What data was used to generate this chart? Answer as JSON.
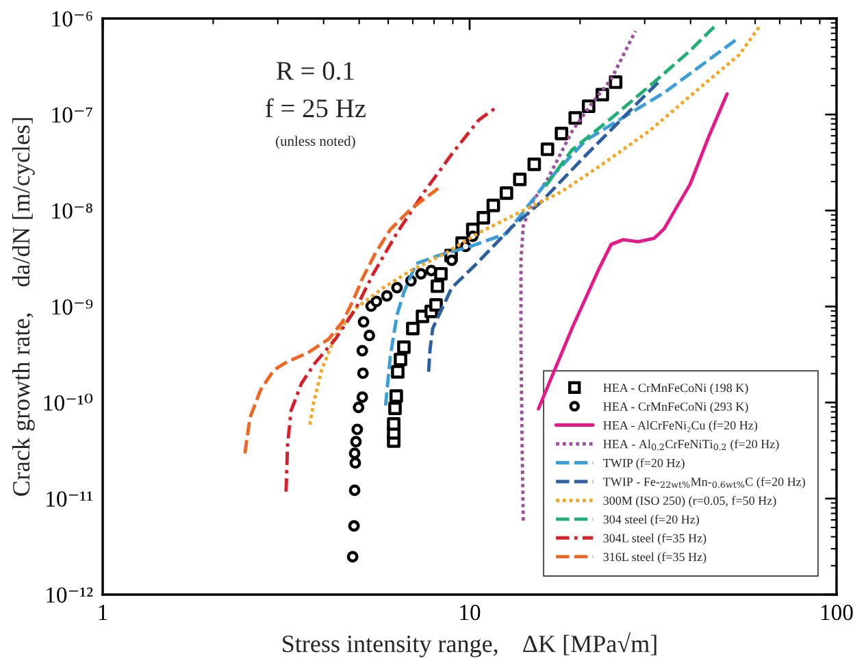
{
  "chart_data": {
    "type": "line",
    "xlabel": "Stress intensity range,    ΔK [MPa√m]",
    "ylabel": "Crack growth rate,    da/dN [m/cycles]",
    "log": "xy",
    "xlim": [
      1,
      100
    ],
    "xticks": [
      1,
      10,
      100
    ],
    "ylim": [
      1e-12,
      1e-06
    ],
    "yticks": [
      {
        "value": 1e-12,
        "label": "10⁻¹²"
      },
      {
        "value": 1e-11,
        "label": "10⁻¹¹"
      },
      {
        "value": 1e-10,
        "label": "10⁻¹⁰"
      },
      {
        "value": 1e-09,
        "label": "10⁻⁹"
      },
      {
        "value": 1e-08,
        "label": "10⁻⁸"
      },
      {
        "value": 1e-07,
        "label": "10⁻⁷"
      },
      {
        "value": 1e-06,
        "label": "10⁻⁶"
      }
    ],
    "grid": false,
    "legend": "bottom right",
    "annotations": [
      "R = 0.1",
      "f = 25 Hz",
      "(unless noted)"
    ],
    "series": [
      {
        "name": "HEA - CrMnFeCoNi (198 K)",
        "type": "scatter",
        "marker": "square",
        "color": "#000000",
        "x": [
          6.21,
          6.21,
          6.21,
          6.26,
          6.31,
          6.37,
          6.48,
          6.62,
          7.0,
          7.44,
          7.86,
          8.1,
          8.17,
          8.35,
          8.9,
          9.54,
          10.2,
          10.9,
          11.6,
          12.6,
          13.7,
          15.0,
          16.3,
          17.8,
          19.4,
          21.1,
          23.0,
          25.0
        ],
        "values": [
          3.97e-11,
          4.84e-11,
          5.98e-11,
          8.7e-11,
          1.17e-10,
          2.09e-10,
          2.81e-10,
          3.77e-10,
          5.9e-10,
          7.9e-10,
          8.9e-10,
          1.04e-09,
          1.63e-09,
          2.19e-09,
          3.4e-09,
          4.57e-09,
          6.35e-09,
          8.4e-09,
          1.13e-08,
          1.52e-08,
          2.11e-08,
          3.03e-08,
          4.34e-08,
          6.34e-08,
          9.2e-08,
          1.22e-07,
          1.61e-07,
          2.17e-07
        ]
      },
      {
        "name": "HEA - CrMnFeCoNi (293 K)",
        "type": "scatter",
        "marker": "circle",
        "color": "#000000",
        "x": [
          4.8,
          4.84,
          4.86,
          4.88,
          4.86,
          4.9,
          4.94,
          4.98,
          5.1,
          5.12,
          5.1,
          5.33,
          5.14,
          5.39,
          5.57,
          5.95,
          6.34,
          6.92,
          7.37,
          7.86,
          8.94,
          9.75,
          10.2
        ],
        "values": [
          2.48e-12,
          5.19e-12,
          1.22e-11,
          2.35e-11,
          2.96e-11,
          3.91e-11,
          5.25e-11,
          8.9e-11,
          1.14e-10,
          2.02e-10,
          3.47e-10,
          4.99e-10,
          6.92e-10,
          1.01e-09,
          1.13e-09,
          1.29e-09,
          1.57e-09,
          1.85e-09,
          2.19e-09,
          2.37e-09,
          3.03e-09,
          4.22e-09,
          5.39e-09
        ]
      },
      {
        "name": "HEA - AlCrFeNi₂Cu (f=20 Hz)",
        "line_style": "solid",
        "color": "#e5198a",
        "x": [
          15.4,
          19.0,
          22.4,
          24.3,
          26.2,
          28.8,
          31.8,
          33.9,
          36.9,
          39.9,
          44.8,
          50.3
        ],
        "values": [
          8.6e-11,
          5.9e-10,
          2.37e-09,
          4.43e-09,
          4.97e-09,
          4.73e-09,
          5.13e-09,
          6.46e-09,
          1.13e-08,
          1.88e-08,
          5.83e-08,
          1.64e-07
        ]
      },
      {
        "name": "HEA - Al$_{0.2}$CrFeNiTi$_{0.2}$ (f=20 Hz)",
        "line_style": "dotted",
        "color": "#9b4f9e",
        "x": [
          14.0,
          13.9,
          13.8,
          13.8,
          14.0,
          14.8,
          16.3,
          19.0,
          21.6,
          24.3,
          28.3
        ],
        "values": [
          5.9e-12,
          3.6e-11,
          4.23e-10,
          3.03e-09,
          6.9e-09,
          1.21e-08,
          2.11e-08,
          6.65e-08,
          1.33e-07,
          2.32e-07,
          7.4e-07
        ]
      },
      {
        "name": "TWIP (f=20 Hz)",
        "line_style": "dashed",
        "color": "#3a9fd8",
        "x": [
          5.9,
          6.08,
          6.34,
          6.62,
          7.15,
          8.21,
          10.0,
          12.6,
          16.2,
          20.7,
          26.5,
          34.0,
          53.2
        ],
        "values": [
          9.3e-11,
          3.05e-10,
          8.2e-10,
          1.4e-09,
          2.8e-09,
          3.4e-09,
          4.2e-09,
          5.75e-09,
          1.97e-08,
          5.37e-08,
          9.55e-08,
          1.7e-07,
          6e-07
        ]
      },
      {
        "name": "TWIP - Fe-$_{22wt%}$Mn-$_{0.6wt%}$C (f=20 Hz)",
        "line_style": "dashed",
        "color": "#2e5fa1",
        "x": [
          7.73,
          7.8,
          7.93,
          8.94,
          10.4,
          13.0,
          15.6,
          20.7,
          25.2,
          29.6,
          32.7
        ],
        "values": [
          2.09e-10,
          3.59e-10,
          5.9e-10,
          1.57e-09,
          2.75e-09,
          6.68e-09,
          1.21e-08,
          3.74e-08,
          7.97e-08,
          1.49e-07,
          2.17e-07
        ]
      },
      {
        "name": "300M (ISO 250) (r=0.05, f=50 Hz)",
        "line_style": "dotted",
        "color": "#f5a623",
        "x": [
          3.67,
          3.75,
          3.95,
          4.31,
          4.9,
          5.82,
          6.92,
          8.57,
          10.6,
          13.7,
          17.8,
          23.0,
          31.1,
          42.0,
          54.3,
          61.8
        ],
        "values": [
          5.89e-11,
          9.6e-11,
          2.19e-10,
          4.99e-10,
          9.6e-10,
          1.57e-09,
          2.37e-09,
          3.57e-09,
          5.85e-09,
          9.6e-09,
          1.57e-08,
          3.03e-08,
          6.88e-08,
          1.84e-07,
          4.19e-07,
          8.35e-07
        ]
      },
      {
        "name": "304 steel (f=20 Hz)",
        "line_style": "dashed",
        "color": "#1fae74",
        "x": [
          16.1,
          19.0,
          24.3,
          31.8,
          39.9,
          46.4
        ],
        "values": [
          1.79e-08,
          4.27e-08,
          9.1e-08,
          2.17e-07,
          4.62e-07,
          8.2e-07
        ]
      },
      {
        "name": "304L steel (f=35 Hz)",
        "line_style": "dashdot",
        "color": "#d7202a",
        "x": [
          3.16,
          3.19,
          3.26,
          3.48,
          3.79,
          4.31,
          4.9,
          5.46,
          6.34,
          7.53,
          8.94,
          10.6,
          11.8
        ],
        "values": [
          1.18e-11,
          3.6e-11,
          8.2e-11,
          1.58e-10,
          2.58e-10,
          4.59e-10,
          9.6e-10,
          2.19e-09,
          5.85e-09,
          1.57e-08,
          3.87e-08,
          8.8e-08,
          1.18e-07
        ]
      },
      {
        "name": "316L steel (f=35 Hz)",
        "line_style": "dashed",
        "color": "#f26522",
        "x": [
          2.44,
          2.52,
          2.69,
          2.93,
          3.19,
          3.63,
          4.13,
          4.5,
          4.8,
          5.12,
          5.53,
          6.08,
          6.92,
          8.21
        ],
        "values": [
          2.96e-11,
          6.95e-11,
          1.34e-10,
          2.19e-10,
          2.67e-10,
          3.31e-10,
          4.59e-10,
          6.92e-10,
          1.13e-09,
          2.01e-09,
          3.57e-09,
          6.35e-09,
          1.04e-08,
          1.7e-08
        ]
      }
    ]
  }
}
